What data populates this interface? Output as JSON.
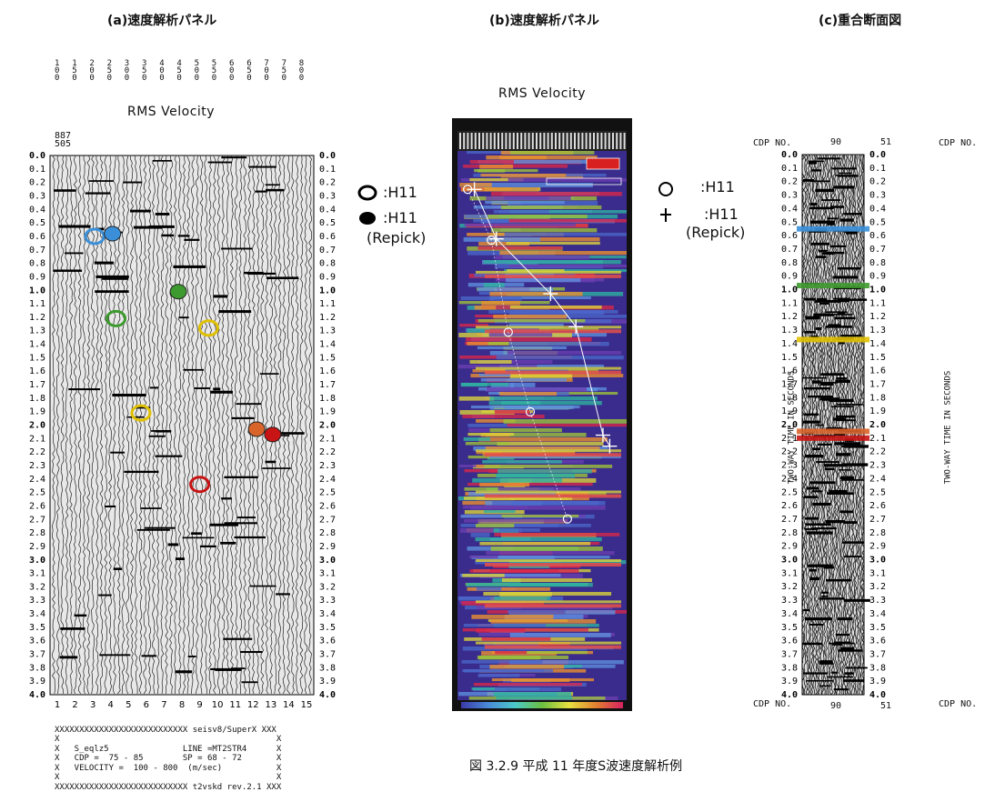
{
  "panels": {
    "a": {
      "title": "(a)速度解析パネル",
      "subtitle": "RMS Velocity",
      "velocity_ticks": [
        "100",
        "150",
        "200",
        "250",
        "300",
        "350",
        "400",
        "450",
        "500",
        "550",
        "600",
        "650",
        "700",
        "750",
        "800"
      ],
      "corner_label": [
        "887",
        "505"
      ],
      "x_ticks": [
        "1",
        "2",
        "3",
        "4",
        "5",
        "6",
        "7",
        "8",
        "9",
        "10",
        "11",
        "12",
        "13",
        "14",
        "15"
      ]
    },
    "b": {
      "title": "(b)速度解析パネル",
      "subtitle": "RMS Velocity"
    },
    "c": {
      "title": "(c)重合断面図",
      "cdp_label": "CDP NO.",
      "cdp_left": "90",
      "cdp_right": "51",
      "axis_label": "TWO-WAY TIME IN SECONDS"
    }
  },
  "legend_b": {
    "open_label": ":H11",
    "repick_label": ":H11",
    "repick_note": "(Repick)"
  },
  "legend_c": {
    "open_label": ":H11",
    "repick_label": ":H11",
    "repick_note": "(Repick)"
  },
  "footer": {
    "line1": "XXXXXXXXXXXXXXXXXXXXXXXXXXX seisv8/SuperX XXX",
    "line2": "X                                            X",
    "line3": "X   S_eqlz5               LINE =MT2STR4      X",
    "line4": "X   CDP =  75 - 85        SP = 68 - 72       X",
    "line5": "X   VELOCITY =  100 - 800  (m/sec)           X",
    "line6": "X                                            X",
    "line7": "XXXXXXXXXXXXXXXXXXXXXXXXXXX t2vskd rev.2.1 XXX"
  },
  "caption": "図 3.2.9 平成 11 年度S波速度解析例",
  "colors": {
    "blue": "#3a8fd8",
    "green": "#3d9a2e",
    "yellow": "#e0c000",
    "red": "#c81414",
    "orange": "#d8642a"
  },
  "chart_data": [
    {
      "type": "scatter",
      "panel": "a",
      "title": "(a)速度解析パネル",
      "subtitle": "RMS Velocity",
      "xlabel": "",
      "ylabel": "",
      "ylim": [
        0,
        4.0
      ],
      "y_ticks": [
        "0.0",
        "0.1",
        "0.2",
        "0.3",
        "0.4",
        "0.5",
        "0.6",
        "0.7",
        "0.8",
        "0.9",
        "1.0",
        "1.1",
        "1.2",
        "1.3",
        "1.4",
        "1.5",
        "1.6",
        "1.7",
        "1.8",
        "1.9",
        "2.0",
        "2.1",
        "2.2",
        "2.3",
        "2.4",
        "2.5",
        "2.6",
        "2.7",
        "2.8",
        "2.9",
        "3.0",
        "3.1",
        "3.2",
        "3.3",
        "3.4",
        "3.5",
        "3.6",
        "3.7",
        "3.8",
        "3.9",
        "4.0"
      ],
      "series": [
        {
          "style": "open",
          "points": [
            {
              "x": 3.1,
              "y": 0.6,
              "color": "blue"
            },
            {
              "x": 4.3,
              "y": 1.21,
              "color": "green"
            },
            {
              "x": 9.5,
              "y": 1.28,
              "color": "yellow"
            },
            {
              "x": 5.7,
              "y": 1.91,
              "color": "yellow"
            },
            {
              "x": 9.0,
              "y": 2.44,
              "color": "red"
            }
          ]
        },
        {
          "style": "filled",
          "points": [
            {
              "x": 4.1,
              "y": 0.58,
              "color": "blue"
            },
            {
              "x": 7.8,
              "y": 1.01,
              "color": "green"
            },
            {
              "x": 12.2,
              "y": 2.03,
              "color": "orange"
            },
            {
              "x": 13.1,
              "y": 2.07,
              "color": "red"
            }
          ]
        }
      ]
    },
    {
      "type": "scatter",
      "panel": "b",
      "title": "(b)速度解析パネル",
      "subtitle": "RMS Velocity",
      "ylim": [
        0,
        4.0
      ],
      "series": [
        {
          "style": "open",
          "points": [
            {
              "x": 0.06,
              "y": 0.28
            },
            {
              "x": 0.2,
              "y": 0.65
            },
            {
              "x": 0.3,
              "y": 1.32
            },
            {
              "x": 0.43,
              "y": 1.9
            },
            {
              "x": 0.65,
              "y": 2.68
            }
          ]
        },
        {
          "style": "cross",
          "points": [
            {
              "x": 0.1,
              "y": 0.28
            },
            {
              "x": 0.23,
              "y": 0.64
            },
            {
              "x": 0.55,
              "y": 1.04
            },
            {
              "x": 0.7,
              "y": 1.28
            },
            {
              "x": 0.86,
              "y": 2.07
            },
            {
              "x": 0.9,
              "y": 2.15
            }
          ]
        }
      ]
    },
    {
      "type": "heatmap",
      "panel": "c",
      "title": "(c)重合断面図",
      "ylabel": "TWO-WAY TIME IN SECONDS",
      "ylim": [
        0,
        4.0
      ],
      "markers": [
        {
          "y": 0.55,
          "color": "blue"
        },
        {
          "y": 0.97,
          "color": "green"
        },
        {
          "y": 1.37,
          "color": "yellow"
        },
        {
          "y": 2.05,
          "color": "orange"
        },
        {
          "y": 2.1,
          "color": "red"
        }
      ]
    }
  ]
}
